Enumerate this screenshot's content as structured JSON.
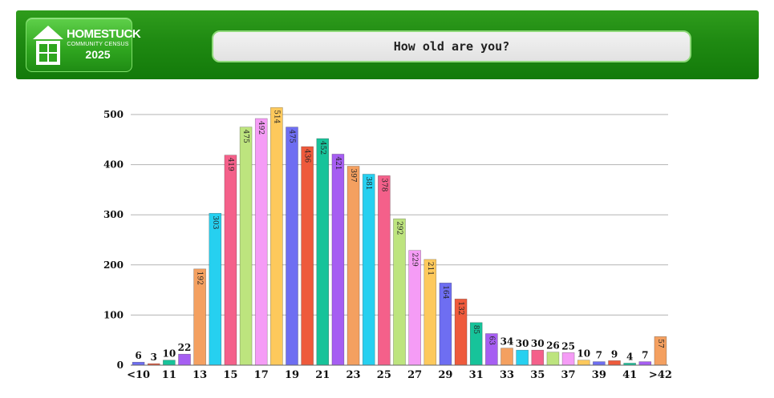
{
  "header": {
    "logo": {
      "title": "HOMESTUCK",
      "subtitle": "COMMUNITY CENSUS",
      "year": "2025"
    },
    "question": "How old are you?"
  },
  "colors": {
    "palette": [
      "#6e6ef2",
      "#ee5a3c",
      "#17c39a",
      "#a65ef2",
      "#f4a060",
      "#26d0f0",
      "#f4608a",
      "#bde47e",
      "#f59cf6",
      "#fdc95c"
    ],
    "grid": "#b3b3b3"
  },
  "chart_data": {
    "type": "bar",
    "title": "How old are you?",
    "categories": [
      "<10",
      "10",
      "11",
      "12",
      "13",
      "14",
      "15",
      "16",
      "17",
      "18",
      "19",
      "20",
      "21",
      "22",
      "23",
      "24",
      "25",
      "26",
      "27",
      "28",
      "29",
      "30",
      "31",
      "32",
      "33",
      "34",
      "35",
      "36",
      "37",
      "38",
      "39",
      "40",
      "41",
      "42",
      ">42"
    ],
    "tick_labels": [
      "<10",
      "11",
      "13",
      "15",
      "17",
      "19",
      "21",
      "23",
      "25",
      "27",
      "29",
      "31",
      "33",
      "35",
      "37",
      "39",
      "41",
      ">42"
    ],
    "values": [
      6,
      3,
      10,
      22,
      192,
      303,
      419,
      475,
      492,
      514,
      475,
      436,
      452,
      421,
      397,
      381,
      378,
      292,
      229,
      211,
      164,
      132,
      85,
      63,
      34,
      30,
      30,
      26,
      25,
      10,
      7,
      9,
      4,
      7,
      57
    ],
    "yticks": [
      0,
      100,
      200,
      300,
      400,
      500
    ],
    "ylim": [
      0,
      520
    ],
    "grid": true,
    "legend": "none"
  }
}
